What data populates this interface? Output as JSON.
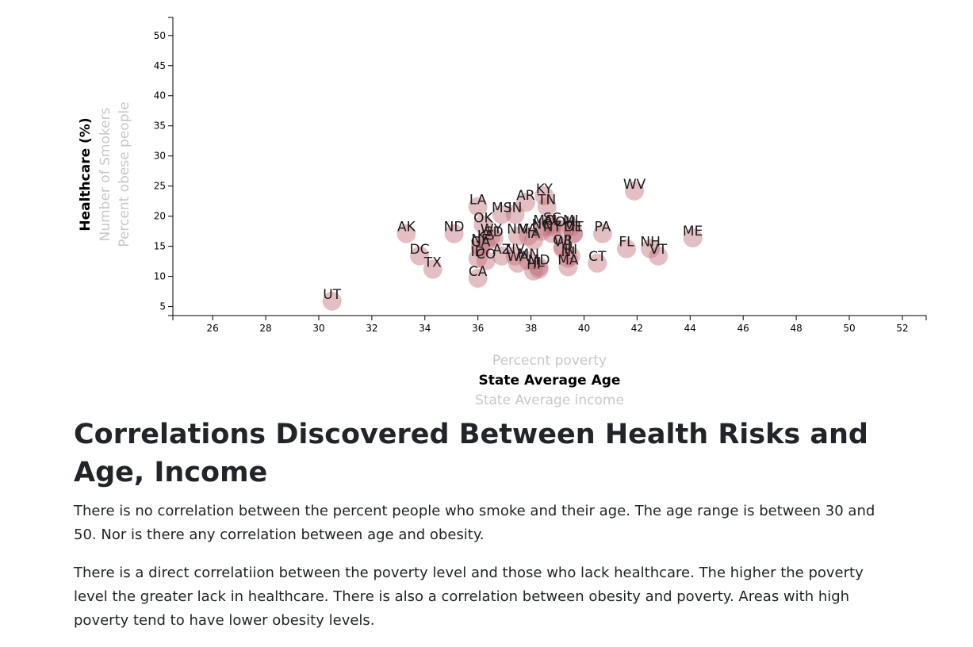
{
  "chart_data": {
    "type": "scatter",
    "x_axis": {
      "options": [
        "Percecnt poverty",
        "State Average Age",
        "State Average income"
      ],
      "active_index": 1,
      "domain": [
        24.5,
        52.9
      ],
      "ticks": [
        26,
        28,
        30,
        32,
        34,
        36,
        38,
        40,
        42,
        44,
        46,
        48,
        50,
        52
      ]
    },
    "y_axis": {
      "options": [
        "Healthcare (%)",
        "Number of Smokers",
        "Percent obese people"
      ],
      "active_index": 0,
      "domain": [
        3.5,
        53
      ],
      "ticks": [
        5,
        10,
        15,
        20,
        25,
        30,
        35,
        40,
        45,
        50
      ]
    },
    "points": [
      {
        "abbr": "UT",
        "x": 30.5,
        "y": 5.9
      },
      {
        "abbr": "AK",
        "x": 33.3,
        "y": 17.1
      },
      {
        "abbr": "DC",
        "x": 33.8,
        "y": 13.4
      },
      {
        "abbr": "TX",
        "x": 34.3,
        "y": 11.2
      },
      {
        "abbr": "ND",
        "x": 35.1,
        "y": 17.1
      },
      {
        "abbr": "LA",
        "x": 36.0,
        "y": 21.6
      },
      {
        "abbr": "OK",
        "x": 36.2,
        "y": 18.6
      },
      {
        "abbr": "CA",
        "x": 36.0,
        "y": 9.7
      },
      {
        "abbr": "ID",
        "x": 36.0,
        "y": 13.0
      },
      {
        "abbr": "CO",
        "x": 36.3,
        "y": 12.6
      },
      {
        "abbr": "KS",
        "x": 36.3,
        "y": 15.7
      },
      {
        "abbr": "NE",
        "x": 36.1,
        "y": 15.0
      },
      {
        "abbr": "GA",
        "x": 36.1,
        "y": 14.6
      },
      {
        "abbr": "WY",
        "x": 36.5,
        "y": 16.7
      },
      {
        "abbr": "SD",
        "x": 36.6,
        "y": 16.3
      },
      {
        "abbr": "AZ",
        "x": 36.9,
        "y": 13.4
      },
      {
        "abbr": "MS",
        "x": 36.9,
        "y": 20.3
      },
      {
        "abbr": "IN",
        "x": 37.4,
        "y": 20.3
      },
      {
        "abbr": "NV",
        "x": 37.4,
        "y": 13.4
      },
      {
        "abbr": "NM",
        "x": 37.5,
        "y": 16.7
      },
      {
        "abbr": "WA",
        "x": 37.5,
        "y": 12.2
      },
      {
        "abbr": "MN",
        "x": 37.9,
        "y": 12.6
      },
      {
        "abbr": "VA",
        "x": 37.9,
        "y": 16.7
      },
      {
        "abbr": "AR",
        "x": 37.8,
        "y": 22.3
      },
      {
        "abbr": "IA",
        "x": 38.1,
        "y": 16.0
      },
      {
        "abbr": "HI",
        "x": 38.1,
        "y": 10.9
      },
      {
        "abbr": "IL",
        "x": 38.3,
        "y": 11.2
      },
      {
        "abbr": "MD",
        "x": 38.3,
        "y": 11.6
      },
      {
        "abbr": "NC",
        "x": 38.4,
        "y": 17.5
      },
      {
        "abbr": "KY",
        "x": 38.5,
        "y": 23.4
      },
      {
        "abbr": "TN",
        "x": 38.6,
        "y": 21.6
      },
      {
        "abbr": "MO",
        "x": 38.5,
        "y": 18.2
      },
      {
        "abbr": "SC",
        "x": 38.8,
        "y": 18.6
      },
      {
        "abbr": "AL",
        "x": 38.8,
        "y": 18.2
      },
      {
        "abbr": "NY",
        "x": 38.8,
        "y": 17.1
      },
      {
        "abbr": "OR",
        "x": 39.2,
        "y": 14.9
      },
      {
        "abbr": "WI",
        "x": 39.2,
        "y": 14.6
      },
      {
        "abbr": "MI",
        "x": 39.5,
        "y": 18.2
      },
      {
        "abbr": "OH",
        "x": 39.3,
        "y": 17.9
      },
      {
        "abbr": "NJ",
        "x": 39.4,
        "y": 13.0
      },
      {
        "abbr": "MA",
        "x": 39.4,
        "y": 11.6
      },
      {
        "abbr": "RI",
        "x": 39.5,
        "y": 13.4
      },
      {
        "abbr": "DE",
        "x": 39.6,
        "y": 17.1
      },
      {
        "abbr": "MT",
        "x": 39.6,
        "y": 17.1
      },
      {
        "abbr": "CT",
        "x": 40.5,
        "y": 12.2
      },
      {
        "abbr": "PA",
        "x": 40.7,
        "y": 17.1
      },
      {
        "abbr": "FL",
        "x": 41.6,
        "y": 14.6
      },
      {
        "abbr": "WV",
        "x": 41.9,
        "y": 24.2
      },
      {
        "abbr": "NH",
        "x": 42.5,
        "y": 14.6
      },
      {
        "abbr": "VT",
        "x": 42.8,
        "y": 13.4
      },
      {
        "abbr": "ME",
        "x": 44.1,
        "y": 16.4
      }
    ]
  },
  "article": {
    "heading": "Correlations Discovered Between Health Risks and Age, Income",
    "paragraphs": [
      "There is no correlation between the percent people who smoke and their age. The age range is between 30 and 50. Nor is there any correlation between age and obesity.",
      "There is a direct correlatiion between the poverty level and those who lack healthcare. The higher the poverty level the greater lack in healthcare. There is also a correlation between obesity and poverty. Areas with high poverty tend to have lower obesity levels."
    ]
  },
  "colors": {
    "point_fill": "#c0707a",
    "active_label": "#000000",
    "inactive_label": "#c8c8c8"
  }
}
